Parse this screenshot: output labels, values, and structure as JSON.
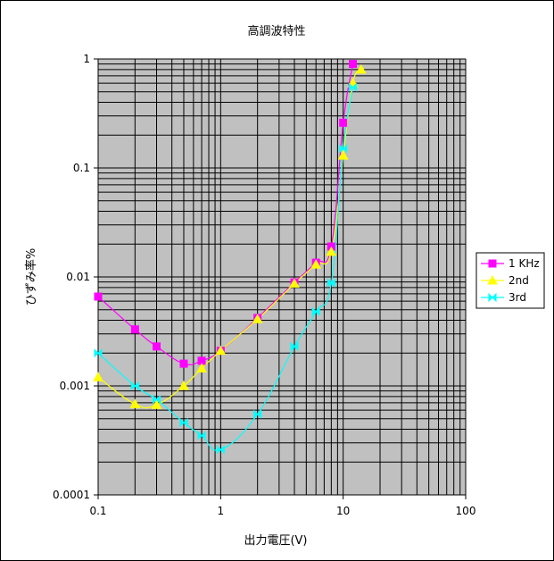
{
  "chart_data": {
    "type": "line",
    "title": "高調波特性",
    "xlabel": "出力電圧(V)",
    "ylabel": "ひずみ率%",
    "xscale": "log",
    "yscale": "log",
    "xlim": [
      0.1,
      100
    ],
    "ylim": [
      0.0001,
      1
    ],
    "x_tick_labels": [
      "0.1",
      "1",
      "10",
      "100"
    ],
    "y_tick_labels": [
      "0.0001",
      "0.001",
      "0.01",
      "0.1",
      "1"
    ],
    "grid": true,
    "legend_position": "right",
    "series": [
      {
        "name": "1 KHz",
        "color": "#ff00ff",
        "marker": "square",
        "x": [
          0.1,
          0.2,
          0.3,
          0.5,
          0.7,
          1,
          2,
          4,
          6,
          8,
          10,
          12
        ],
        "y": [
          0.0066,
          0.0033,
          0.0023,
          0.0016,
          0.0017,
          0.0021,
          0.0042,
          0.0089,
          0.0135,
          0.019,
          0.26,
          0.9
        ]
      },
      {
        "name": "2nd",
        "color": "#ffff00",
        "marker": "triangle",
        "x": [
          0.1,
          0.2,
          0.3,
          0.5,
          0.7,
          1,
          2,
          4,
          6,
          8,
          10,
          12,
          14
        ],
        "y": [
          0.0012,
          0.00068,
          0.00067,
          0.001,
          0.00145,
          0.0021,
          0.0041,
          0.0087,
          0.013,
          0.017,
          0.13,
          0.6,
          0.8
        ]
      },
      {
        "name": "3rd",
        "color": "#00ffff",
        "marker": "bowtie",
        "x": [
          0.1,
          0.2,
          0.3,
          0.5,
          0.7,
          1,
          2,
          4,
          6,
          8,
          10,
          12
        ],
        "y": [
          0.002,
          0.001,
          0.00075,
          0.00046,
          0.00035,
          0.00026,
          0.00055,
          0.0023,
          0.0048,
          0.0088,
          0.15,
          0.55
        ]
      }
    ]
  }
}
